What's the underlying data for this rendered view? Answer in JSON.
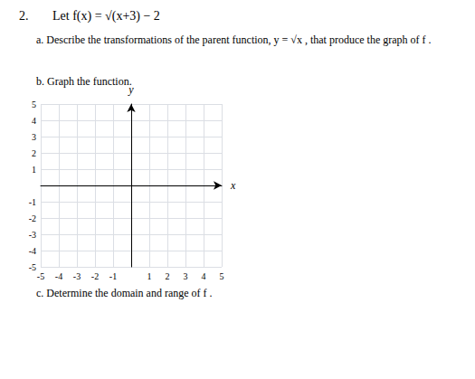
{
  "chart_data": {
    "type": "line",
    "annotations": [
      "2.",
      "Let f(x) = √(x+3) − 2",
      "a. Describe the transformations of the parent function, y = √x , that produce the graph of f .",
      "b. Graph the function.",
      "c. Determine the domain and range of f ."
    ],
    "xlabel": "x",
    "ylabel": "y",
    "xlim": [
      -5,
      5
    ],
    "ylim": [
      -5,
      5
    ],
    "xticks": [
      -5,
      -4,
      -3,
      -2,
      -1,
      1,
      2,
      3,
      4,
      5
    ],
    "yticks": [
      -5,
      -4,
      -3,
      -2,
      -1,
      1,
      2,
      3,
      4,
      5
    ],
    "grid": true
  }
}
